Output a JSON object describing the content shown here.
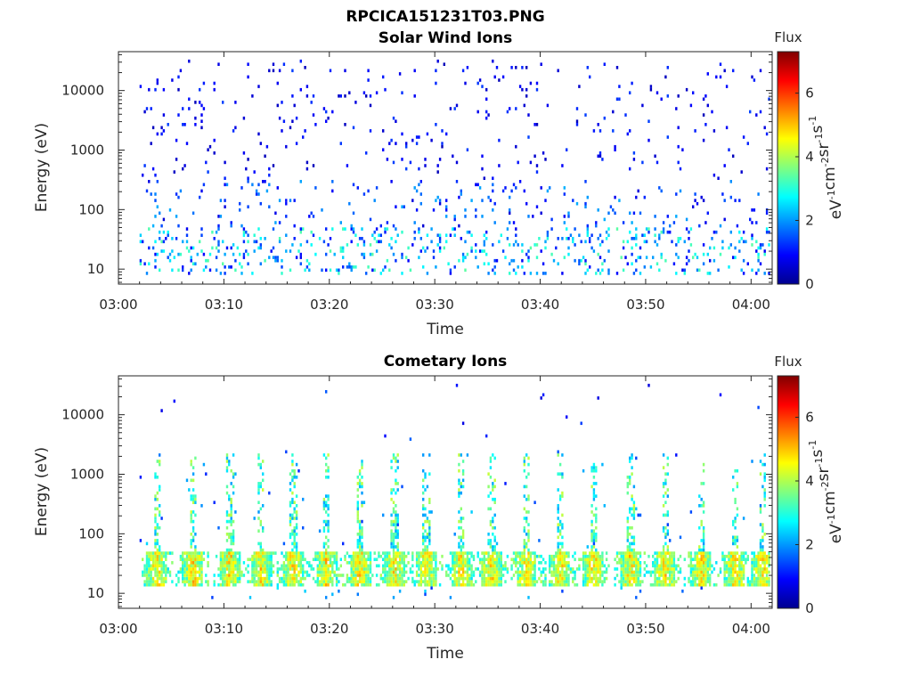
{
  "figure": {
    "title": "RPCICA151231T03.PNG"
  },
  "colormap": "jet",
  "chart_data": [
    {
      "type": "heatmap",
      "title": "Solar Wind Ions",
      "xlabel": "Time",
      "ylabel": "Energy (eV)",
      "y_scale": "log",
      "ylim": [
        5.6,
        45000
      ],
      "xlim": [
        "03:00",
        "04:02"
      ],
      "x_ticks": [
        "03:00",
        "03:10",
        "03:20",
        "03:30",
        "03:40",
        "03:50",
        "04:00"
      ],
      "y_ticks": [
        "10",
        "100",
        "1000",
        "10000"
      ],
      "colorbar": {
        "label": "Flux",
        "unit_base": "eV",
        "unit_parts": [
          {
            "base": "eV",
            "exp": "-1"
          },
          {
            "base": "cm",
            "exp": "-2"
          },
          {
            "base": "sr",
            "exp": "-1"
          },
          {
            "base": "s",
            "exp": "-1"
          }
        ],
        "range": [
          0,
          7.3
        ],
        "ticks": [
          "0",
          "2",
          "4",
          "6"
        ]
      },
      "data_coverage": {
        "start": "03:02",
        "end": "04:02"
      },
      "low_energy_band": {
        "energy_range": [
          10,
          40
        ],
        "typical_flux": [
          1,
          3.2
        ]
      },
      "high_energy_scatter": {
        "energy_range": [
          60,
          20000
        ],
        "typical_flux": [
          0.5,
          1.5
        ]
      }
    },
    {
      "type": "heatmap",
      "title": "Cometary Ions",
      "xlabel": "Time",
      "ylabel": "Energy (eV)",
      "y_scale": "log",
      "ylim": [
        5.6,
        45000
      ],
      "xlim": [
        "03:00",
        "04:02"
      ],
      "x_ticks": [
        "03:00",
        "03:10",
        "03:20",
        "03:30",
        "03:40",
        "03:50",
        "04:00"
      ],
      "y_ticks": [
        "10",
        "100",
        "1000",
        "10000"
      ],
      "colorbar": {
        "label": "Flux",
        "unit_parts": [
          {
            "base": "eV",
            "exp": "-1"
          },
          {
            "base": "cm",
            "exp": "-2"
          },
          {
            "base": "sr",
            "exp": "-1"
          },
          {
            "base": "s",
            "exp": "-1"
          }
        ],
        "range": [
          0,
          7.3
        ],
        "ticks": [
          "0",
          "2",
          "4",
          "6"
        ]
      },
      "data_coverage": {
        "start": "03:02",
        "end": "04:02"
      },
      "bursts_minutes": [
        3.6,
        7.0,
        10.5,
        13.4,
        16.5,
        19.6,
        22.8,
        26.1,
        29.1,
        32.4,
        35.3,
        38.6,
        41.8,
        45.0,
        48.5,
        51.8,
        55.2,
        58.4,
        61.0
      ],
      "burst_energy_range": [
        12,
        45
      ],
      "burst_peak_flux": [
        4.5,
        6.6
      ],
      "vertical_streak_energy_range": [
        40,
        2000
      ]
    }
  ]
}
